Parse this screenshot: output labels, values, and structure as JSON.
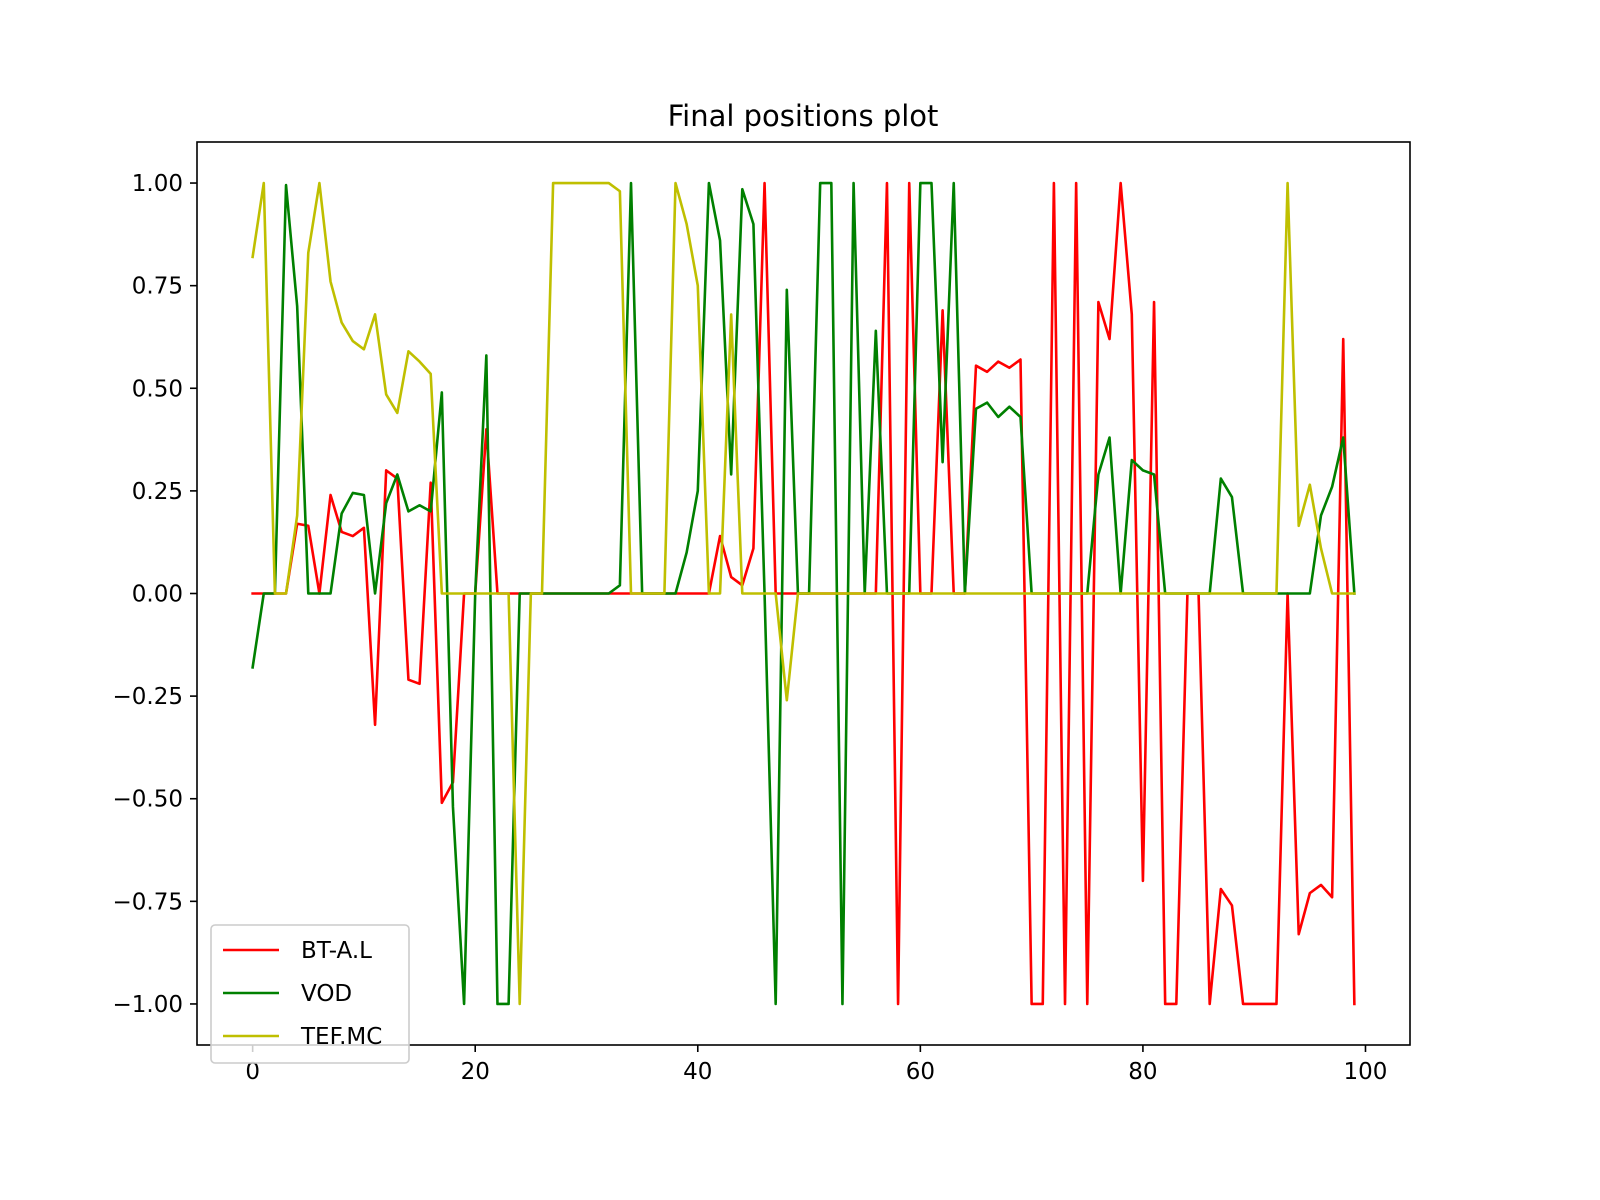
{
  "chart_data": {
    "type": "line",
    "title": "Final positions plot",
    "xlabel": "",
    "ylabel": "",
    "xlim": [
      -5,
      104
    ],
    "ylim": [
      -1.1,
      1.1
    ],
    "xticks": [
      0,
      20,
      40,
      60,
      80,
      100
    ],
    "yticks": [
      1.0,
      0.75,
      0.5,
      0.25,
      0.0,
      -0.25,
      -0.5,
      -0.75,
      -1.0
    ],
    "xtick_labels": [
      "0",
      "20",
      "40",
      "60",
      "80",
      "100"
    ],
    "ytick_labels": [
      "1.00",
      "0.75",
      "0.50",
      "0.25",
      "0.00",
      "−0.25",
      "−0.50",
      "−0.75",
      "−1.00"
    ],
    "grid": false,
    "legend_position": "lower-left",
    "x": [
      0,
      1,
      2,
      3,
      4,
      5,
      6,
      7,
      8,
      9,
      10,
      11,
      12,
      13,
      14,
      15,
      16,
      17,
      18,
      19,
      20,
      21,
      22,
      23,
      24,
      25,
      26,
      27,
      28,
      29,
      30,
      31,
      32,
      33,
      34,
      35,
      36,
      37,
      38,
      39,
      40,
      41,
      42,
      43,
      44,
      45,
      46,
      47,
      48,
      49,
      50,
      51,
      52,
      53,
      54,
      55,
      56,
      57,
      58,
      59,
      60,
      61,
      62,
      63,
      64,
      65,
      66,
      67,
      68,
      69,
      70,
      71,
      72,
      73,
      74,
      75,
      76,
      77,
      78,
      79,
      80,
      81,
      82,
      83,
      84,
      85,
      86,
      87,
      88,
      89,
      90,
      91,
      92,
      93,
      94,
      95,
      96,
      97,
      98,
      99
    ],
    "series": [
      {
        "name": "BT-A.L",
        "color": "#ff0000",
        "values": [
          0,
          0,
          0,
          0,
          0.17,
          0.165,
          0,
          0.24,
          0.15,
          0.14,
          0.16,
          -0.32,
          0.3,
          0.28,
          -0.21,
          -0.22,
          0.27,
          -0.51,
          -0.46,
          0,
          0,
          0.4,
          0,
          0,
          0,
          0,
          0,
          0,
          0,
          0,
          0,
          0,
          0,
          0,
          0,
          0,
          0,
          0,
          0,
          0,
          0,
          0,
          0.14,
          0.04,
          0.02,
          0.11,
          1,
          0,
          0,
          0,
          0,
          0,
          0,
          0,
          0,
          0,
          0,
          1,
          -1,
          1,
          0,
          0,
          0.69,
          0,
          0,
          0.555,
          0.54,
          0.565,
          0.55,
          0.57,
          -1,
          -1,
          1,
          -1,
          1,
          -1,
          0.71,
          0.62,
          1,
          0.68,
          -0.7,
          0.71,
          -1,
          -1,
          0,
          0,
          -1,
          -0.72,
          -0.76,
          -1,
          -1,
          -1,
          -1,
          0,
          -0.83,
          -0.73,
          -0.71,
          -0.74,
          0.62,
          -1
        ]
      },
      {
        "name": "VOD",
        "color": "#008000",
        "values": [
          -0.18,
          0,
          0,
          0.995,
          0.7,
          0,
          0,
          0,
          0.195,
          0.245,
          0.24,
          0,
          0.22,
          0.29,
          0.2,
          0.215,
          0.2,
          0.49,
          -0.52,
          -1,
          0,
          0.58,
          -1,
          -1,
          0,
          0,
          0,
          0,
          0,
          0,
          0,
          0,
          0,
          0.02,
          1,
          0,
          0,
          0,
          0,
          0.1,
          0.25,
          1,
          0.86,
          0.29,
          0.985,
          0.9,
          0,
          -1,
          0.74,
          0,
          0,
          1,
          1,
          -1,
          1,
          0,
          0.64,
          0,
          0,
          0,
          1,
          1,
          0.32,
          1,
          0,
          0.45,
          0.465,
          0.43,
          0.455,
          0.43,
          0,
          0,
          0,
          0,
          0,
          0,
          0.29,
          0.38,
          0,
          0.325,
          0.3,
          0.29,
          0,
          0,
          0,
          0,
          0,
          0.28,
          0.235,
          0,
          0,
          0,
          0,
          0,
          0,
          0,
          0.19,
          0.26,
          0.38,
          0
        ]
      },
      {
        "name": "TEF.MC",
        "color": "#bfbf00",
        "values": [
          0.82,
          1,
          0,
          0,
          0.19,
          0.83,
          1,
          0.76,
          0.66,
          0.615,
          0.595,
          0.68,
          0.485,
          0.44,
          0.59,
          0.565,
          0.535,
          0,
          0,
          0,
          0,
          0,
          0,
          0,
          -1,
          0,
          0,
          1,
          1,
          1,
          1,
          1,
          1,
          0.98,
          0,
          0,
          0,
          0,
          1,
          0.9,
          0.75,
          0,
          0,
          0.68,
          0,
          0,
          0,
          0,
          -0.26,
          0,
          0,
          0,
          0,
          0,
          0,
          0,
          0,
          0,
          0,
          0,
          0,
          0,
          0,
          0,
          0,
          0,
          0,
          0,
          0,
          0,
          0,
          0,
          0,
          0,
          0,
          0,
          0,
          0,
          0,
          0,
          0,
          0,
          0,
          0,
          0,
          0,
          0,
          0,
          0,
          0,
          0,
          0,
          0,
          1,
          0.165,
          0.265,
          0.11,
          0,
          0,
          0
        ]
      }
    ]
  }
}
